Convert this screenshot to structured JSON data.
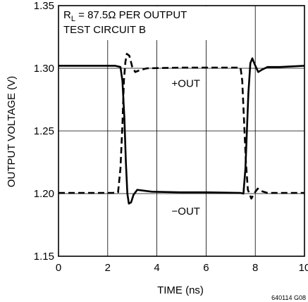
{
  "chart_data": {
    "type": "line",
    "xlabel": "TIME (ns)",
    "ylabel": "OUTPUT VOLTAGE (V)",
    "xlim": [
      0,
      10
    ],
    "ylim": [
      1.15,
      1.35
    ],
    "x_ticks": [
      "0",
      "2",
      "4",
      "6",
      "8",
      "10"
    ],
    "y_ticks": [
      "1.15",
      "1.20",
      "1.25",
      "1.30",
      "1.35"
    ],
    "grid": true,
    "annotation_line1": "R",
    "annotation_sub": "L",
    "annotation_line1_rest": " = 87.5Ω PER OUTPUT",
    "annotation_line2": "TEST CIRCUIT B",
    "figure_code": "640114 G08",
    "series": [
      {
        "name": "+OUT",
        "style": "solid",
        "points": [
          [
            0,
            1.302
          ],
          [
            1,
            1.302
          ],
          [
            2.3,
            1.302
          ],
          [
            2.52,
            1.301
          ],
          [
            2.6,
            1.29
          ],
          [
            2.68,
            1.26
          ],
          [
            2.74,
            1.225
          ],
          [
            2.8,
            1.2
          ],
          [
            2.86,
            1.192
          ],
          [
            2.95,
            1.193
          ],
          [
            3.05,
            1.199
          ],
          [
            3.2,
            1.203
          ],
          [
            3.4,
            1.2025
          ],
          [
            3.8,
            1.2015
          ],
          [
            5,
            1.201
          ],
          [
            6,
            1.201
          ],
          [
            7.4,
            1.2005
          ],
          [
            7.52,
            1.2
          ],
          [
            7.6,
            1.22
          ],
          [
            7.66,
            1.25
          ],
          [
            7.72,
            1.28
          ],
          [
            7.8,
            1.304
          ],
          [
            7.88,
            1.308
          ],
          [
            7.98,
            1.303
          ],
          [
            8.12,
            1.297
          ],
          [
            8.28,
            1.299
          ],
          [
            8.5,
            1.301
          ],
          [
            9,
            1.301
          ],
          [
            10,
            1.302
          ]
        ]
      },
      {
        "name": "−OUT",
        "style": "dashed",
        "points": [
          [
            0,
            1.2005
          ],
          [
            1,
            1.2005
          ],
          [
            2.2,
            1.2005
          ],
          [
            2.42,
            1.201
          ],
          [
            2.52,
            1.22
          ],
          [
            2.6,
            1.255
          ],
          [
            2.66,
            1.29
          ],
          [
            2.72,
            1.305
          ],
          [
            2.78,
            1.3115
          ],
          [
            2.88,
            1.31
          ],
          [
            3,
            1.301
          ],
          [
            3.12,
            1.297
          ],
          [
            3.3,
            1.2985
          ],
          [
            3.6,
            1.3
          ],
          [
            5,
            1.3005
          ],
          [
            7.4,
            1.3005
          ],
          [
            7.47,
            1.29
          ],
          [
            7.55,
            1.255
          ],
          [
            7.62,
            1.225
          ],
          [
            7.7,
            1.203
          ],
          [
            7.76,
            1.2
          ],
          [
            7.84,
            1.196
          ],
          [
            7.95,
            1.2
          ],
          [
            8.1,
            1.204
          ],
          [
            8.25,
            1.202
          ],
          [
            8.5,
            1.2005
          ],
          [
            10,
            1.2005
          ]
        ]
      }
    ],
    "labels": [
      {
        "text": "+OUT",
        "x": 4.6,
        "y": 1.288
      },
      {
        "text": "−OUT",
        "x": 4.6,
        "y": 1.186
      }
    ]
  }
}
